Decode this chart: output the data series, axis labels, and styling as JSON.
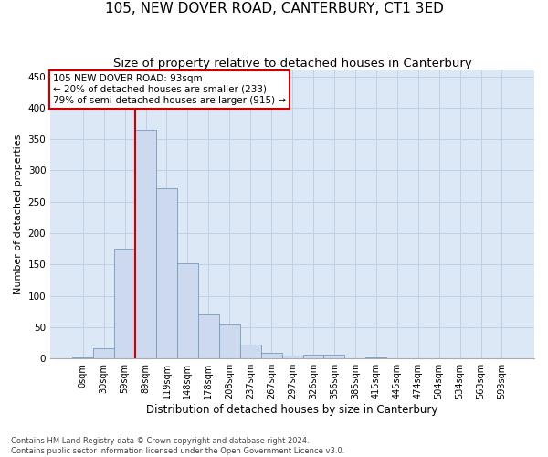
{
  "title": "105, NEW DOVER ROAD, CANTERBURY, CT1 3ED",
  "subtitle": "Size of property relative to detached houses in Canterbury",
  "xlabel": "Distribution of detached houses by size in Canterbury",
  "ylabel": "Number of detached properties",
  "bin_labels": [
    "0sqm",
    "30sqm",
    "59sqm",
    "89sqm",
    "119sqm",
    "148sqm",
    "178sqm",
    "208sqm",
    "237sqm",
    "267sqm",
    "297sqm",
    "326sqm",
    "356sqm",
    "385sqm",
    "415sqm",
    "445sqm",
    "474sqm",
    "504sqm",
    "534sqm",
    "563sqm",
    "593sqm"
  ],
  "bar_values": [
    2,
    16,
    175,
    365,
    272,
    152,
    70,
    54,
    22,
    9,
    5,
    6,
    6,
    0,
    2,
    0,
    0,
    1,
    0,
    0,
    1
  ],
  "bar_color": "#ccd9ee",
  "bar_edge_color": "#7799bb",
  "grid_color": "#bfd0e8",
  "bg_color": "#dce8f5",
  "annotation_box_color": "#cc0000",
  "vline_color": "#cc0000",
  "vline_bin_index": 3,
  "annotation_text": "105 NEW DOVER ROAD: 93sqm\n← 20% of detached houses are smaller (233)\n79% of semi-detached houses are larger (915) →",
  "annotation_fontsize": 7.5,
  "ylim": [
    0,
    460
  ],
  "yticks": [
    0,
    50,
    100,
    150,
    200,
    250,
    300,
    350,
    400,
    450
  ],
  "footer_text": "Contains HM Land Registry data © Crown copyright and database right 2024.\nContains public sector information licensed under the Open Government Licence v3.0.",
  "title_fontsize": 11,
  "subtitle_fontsize": 9.5,
  "xlabel_fontsize": 8.5,
  "ylabel_fontsize": 8,
  "tick_fontsize": 7,
  "ytick_fontsize": 7.5
}
